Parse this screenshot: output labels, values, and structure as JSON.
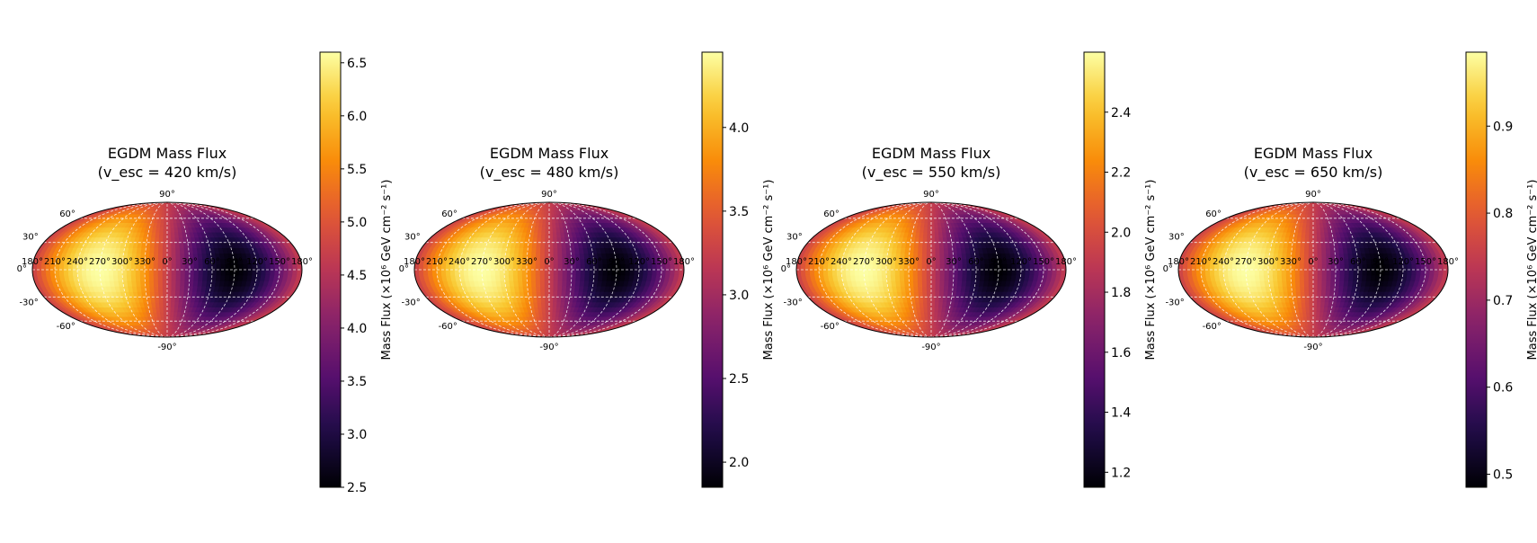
{
  "figure": {
    "panel_count": 4
  },
  "chart_data": [
    {
      "type": "heatmap",
      "projection": "mollweide",
      "title": "EGDM Mass Flux",
      "subtitle": "(v_esc = 420 km/s)",
      "colorbar": {
        "label": "Mass Flux (×10⁶ GeV cm⁻² s⁻¹)",
        "min": 2.5,
        "max": 6.6,
        "ticks": [
          2.5,
          3.0,
          3.5,
          4.0,
          4.5,
          5.0,
          5.5,
          6.0,
          6.5
        ],
        "tick_labels": [
          "2.5",
          "3.0",
          "3.5",
          "4.0",
          "4.5",
          "5.0",
          "5.5",
          "6.0",
          "6.5"
        ]
      },
      "lon_tick_labels": [
        "180°",
        "210°",
        "240°",
        "270°",
        "300°",
        "330°",
        "0°",
        "30°",
        "60°",
        "90°",
        "120°",
        "150°",
        "180°"
      ],
      "lat_tick_labels": [
        "90°",
        "60°",
        "30°",
        "0°",
        "-30°",
        "-60°",
        "-90°"
      ],
      "field": {
        "peak_lon_deg": -90,
        "peak_lat_deg": 0,
        "min_lon_deg": 90,
        "min_lat_deg": 0,
        "value_max": 6.6,
        "value_min": 2.5
      },
      "colormap": "inferno",
      "grid": true
    },
    {
      "type": "heatmap",
      "projection": "mollweide",
      "title": "EGDM Mass Flux",
      "subtitle": "(v_esc = 480 km/s)",
      "colorbar": {
        "label": "Mass Flux (×10⁶ GeV cm⁻² s⁻¹)",
        "min": 1.85,
        "max": 4.45,
        "ticks": [
          2.0,
          2.5,
          3.0,
          3.5,
          4.0
        ],
        "tick_labels": [
          "2.0",
          "2.5",
          "3.0",
          "3.5",
          "4.0"
        ]
      },
      "lon_tick_labels": [
        "180°",
        "210°",
        "240°",
        "270°",
        "300°",
        "330°",
        "0°",
        "30°",
        "60°",
        "90°",
        "120°",
        "150°",
        "180°"
      ],
      "lat_tick_labels": [
        "90°",
        "60°",
        "30°",
        "0°",
        "-30°",
        "-60°",
        "-90°"
      ],
      "field": {
        "peak_lon_deg": -90,
        "peak_lat_deg": 0,
        "min_lon_deg": 90,
        "min_lat_deg": 0,
        "value_max": 4.45,
        "value_min": 1.85
      },
      "colormap": "inferno",
      "grid": true
    },
    {
      "type": "heatmap",
      "projection": "mollweide",
      "title": "EGDM Mass Flux",
      "subtitle": "(v_esc = 550 km/s)",
      "colorbar": {
        "label": "Mass Flux (×10⁶ GeV cm⁻² s⁻¹)",
        "min": 1.15,
        "max": 2.6,
        "ticks": [
          1.2,
          1.4,
          1.6,
          1.8,
          2.0,
          2.2,
          2.4
        ],
        "tick_labels": [
          "1.2",
          "1.4",
          "1.6",
          "1.8",
          "2.0",
          "2.2",
          "2.4"
        ]
      },
      "lon_tick_labels": [
        "180°",
        "210°",
        "240°",
        "270°",
        "300°",
        "330°",
        "0°",
        "30°",
        "60°",
        "90°",
        "120°",
        "150°",
        "180°"
      ],
      "lat_tick_labels": [
        "90°",
        "60°",
        "30°",
        "0°",
        "-30°",
        "-60°",
        "-90°"
      ],
      "field": {
        "peak_lon_deg": -90,
        "peak_lat_deg": 0,
        "min_lon_deg": 90,
        "min_lat_deg": 0,
        "value_max": 2.6,
        "value_min": 1.15
      },
      "colormap": "inferno",
      "grid": true
    },
    {
      "type": "heatmap",
      "projection": "mollweide",
      "title": "EGDM Mass Flux",
      "subtitle": "(v_esc = 650 km/s)",
      "colorbar": {
        "label": "Mass Flux (×10⁶ GeV cm⁻² s⁻¹)",
        "min": 0.485,
        "max": 0.985,
        "ticks": [
          0.5,
          0.6,
          0.7,
          0.8,
          0.9
        ],
        "tick_labels": [
          "0.5",
          "0.6",
          "0.7",
          "0.8",
          "0.9"
        ]
      },
      "lon_tick_labels": [
        "180°",
        "210°",
        "240°",
        "270°",
        "300°",
        "330°",
        "0°",
        "30°",
        "60°",
        "90°",
        "120°",
        "150°",
        "180°"
      ],
      "lat_tick_labels": [
        "90°",
        "60°",
        "30°",
        "0°",
        "-30°",
        "-60°",
        "-90°"
      ],
      "field": {
        "peak_lon_deg": -90,
        "peak_lat_deg": 0,
        "min_lon_deg": 90,
        "min_lat_deg": 0,
        "value_max": 0.985,
        "value_min": 0.485
      },
      "colormap": "inferno",
      "grid": true
    }
  ]
}
